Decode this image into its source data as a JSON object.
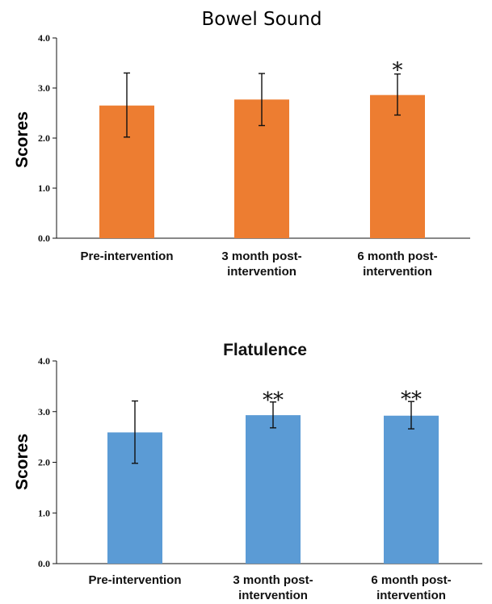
{
  "chart_data": [
    {
      "type": "bar",
      "title": "Bowel Sound",
      "ylabel": "Scores",
      "xlabel": "",
      "ylim": [
        0,
        4
      ],
      "yticks": [
        "0.0",
        "1.0",
        "2.0",
        "3.0",
        "4.0"
      ],
      "categories": [
        "Pre-intervention",
        "3 month post-intervention",
        "6 month post-intervention"
      ],
      "category_lines": [
        [
          "Pre-intervention"
        ],
        [
          "3 month post-",
          "intervention"
        ],
        [
          "6 month post-",
          "intervention"
        ]
      ],
      "values": [
        2.65,
        2.77,
        2.86
      ],
      "error_low": [
        2.02,
        2.25,
        2.46
      ],
      "error_high": [
        3.3,
        3.29,
        3.28
      ],
      "significance": [
        "",
        "",
        "*"
      ],
      "color": "#ED7D31",
      "grid": false,
      "legend": "none"
    },
    {
      "type": "bar",
      "title": "Flatulence",
      "ylabel": "Scores",
      "xlabel": "",
      "ylim": [
        0,
        4
      ],
      "yticks": [
        "0.0",
        "1.0",
        "2.0",
        "3.0",
        "4.0"
      ],
      "categories": [
        "Pre-intervention",
        "3 month post-intervention",
        "6 month post-intervention"
      ],
      "category_lines": [
        [
          "Pre-intervention"
        ],
        [
          "3 month post-",
          "intervention"
        ],
        [
          "6 month post-",
          "intervention"
        ]
      ],
      "values": [
        2.59,
        2.93,
        2.92
      ],
      "error_low": [
        1.98,
        2.68,
        2.66
      ],
      "error_high": [
        3.21,
        3.19,
        3.2
      ],
      "significance": [
        "",
        "**",
        "**"
      ],
      "color": "#5B9BD5",
      "grid": false,
      "legend": "none"
    }
  ]
}
